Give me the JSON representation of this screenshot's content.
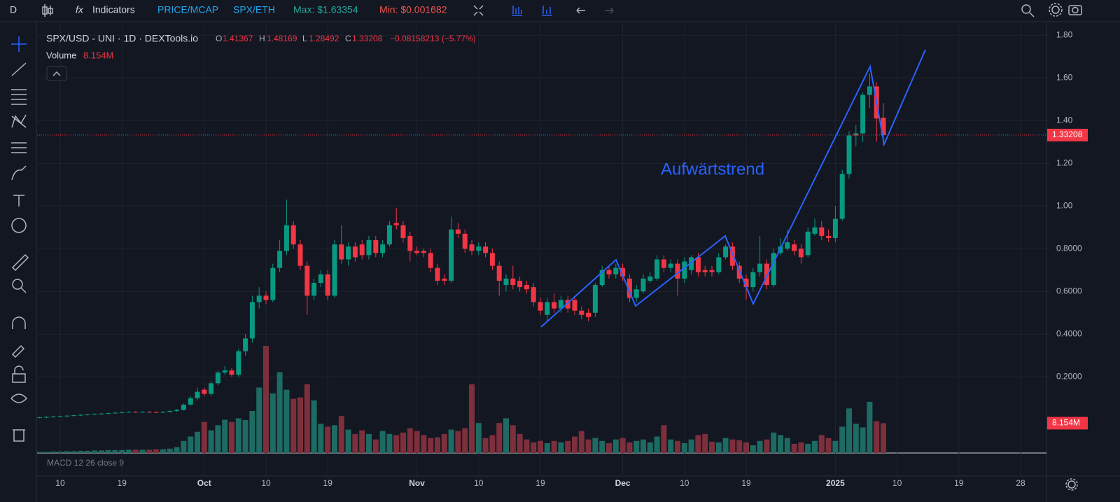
{
  "toolbar": {
    "interval": "D",
    "indicators": "Indicators",
    "price_mcap": "PRICE/MCAP",
    "pair": "SPX/ETH",
    "max": "Max: $1.63354",
    "min": "Min: $0.001682"
  },
  "chart_data": {
    "type": "candlestick",
    "title": "SPX/USD - UNI · 1D · DEXTools.io",
    "ohlc_labels": [
      "O",
      "H",
      "L",
      "C"
    ],
    "change": "−0.08158213 (−5.77%)",
    "volume_title": "Volume",
    "volume_last": "8.154M",
    "indicator": "MACD 12 26 close 9",
    "annotation": "Aufwärtstrend",
    "up_color": "#089981",
    "down_color": "#f23645",
    "volume_up_color": "#1d6b62",
    "volume_down_color": "#7d2f3c",
    "annotation_color": "#2962ff",
    "grid": true,
    "ylim": [
      -0.15,
      1.84
    ],
    "yticks": [
      {
        "value": 0.2,
        "label": "0.2000"
      },
      {
        "value": 0.4,
        "label": "0.4000"
      },
      {
        "value": 0.6,
        "label": "0.6000"
      },
      {
        "value": 0.8,
        "label": "0.8000"
      },
      {
        "value": 1.0,
        "label": "1.00"
      },
      {
        "value": 1.2,
        "label": "1.20"
      },
      {
        "value": 1.4,
        "label": "1.40"
      },
      {
        "value": 1.6,
        "label": "1.60"
      },
      {
        "value": 1.8,
        "label": "1.80"
      }
    ],
    "categories": [
      null,
      null,
      null,
      "10",
      null,
      null,
      null,
      null,
      null,
      null,
      null,
      null,
      "19",
      null,
      null,
      null,
      null,
      null,
      null,
      null,
      null,
      null,
      null,
      null,
      "Oct",
      null,
      null,
      null,
      null,
      null,
      null,
      null,
      null,
      "10",
      null,
      null,
      null,
      null,
      null,
      null,
      null,
      null,
      "19",
      null,
      null,
      null,
      null,
      null,
      null,
      null,
      null,
      null,
      null,
      null,
      null,
      "Nov",
      null,
      null,
      null,
      null,
      null,
      null,
      null,
      null,
      "10",
      null,
      null,
      null,
      null,
      null,
      null,
      null,
      null,
      "19",
      null,
      null,
      null,
      null,
      null,
      null,
      null,
      null,
      null,
      null,
      null,
      "Dec",
      null,
      null,
      null,
      null,
      null,
      null,
      null,
      null,
      "10",
      null,
      null,
      null,
      null,
      null,
      null,
      null,
      null,
      "19",
      null,
      null,
      null,
      null,
      null,
      null,
      null,
      null,
      null,
      null,
      null,
      null,
      "2025",
      null,
      null,
      null,
      null,
      null,
      null,
      null,
      null,
      "10",
      null,
      null,
      null,
      null,
      null,
      null,
      null,
      null,
      "19",
      null,
      null,
      null,
      null,
      null,
      null,
      null,
      null,
      "28",
      null,
      null,
      null
    ],
    "open": [
      0.009,
      0.01,
      0.012,
      0.014,
      0.016,
      0.018,
      0.02,
      0.022,
      0.024,
      0.026,
      0.028,
      0.03,
      0.032,
      0.034,
      0.036,
      0.035,
      0.036,
      0.035,
      0.034,
      0.036,
      0.04,
      0.045,
      0.07,
      0.1,
      0.14,
      0.12,
      0.17,
      0.22,
      0.23,
      0.21,
      0.32,
      0.38,
      0.55,
      0.58,
      0.56,
      0.71,
      0.79,
      0.91,
      0.82,
      0.72,
      0.58,
      0.64,
      0.68,
      0.58,
      0.82,
      0.75,
      0.81,
      0.82,
      0.77,
      0.84,
      0.78,
      0.82,
      0.92,
      0.91,
      0.86,
      0.79,
      0.79,
      0.78,
      0.71,
      0.66,
      0.65,
      0.89,
      0.87,
      0.82,
      0.79,
      0.81,
      0.78,
      0.72,
      0.63,
      0.66,
      0.65,
      0.63,
      0.62,
      0.55,
      0.49,
      0.55,
      0.52,
      0.56,
      0.56,
      0.51,
      0.5,
      0.5,
      0.63,
      0.7,
      0.68,
      0.71,
      0.66,
      0.57,
      0.6,
      0.65,
      0.66,
      0.75,
      0.71,
      0.73,
      0.66,
      0.7,
      0.76,
      0.7,
      0.7,
      0.69,
      0.76,
      0.81,
      0.72,
      0.66,
      0.62,
      0.69,
      0.73,
      0.63,
      0.78,
      0.8,
      0.82,
      0.8,
      0.77,
      0.87,
      0.9,
      0.86,
      0.85,
      0.94,
      1.15,
      1.33,
      1.34,
      1.52,
      1.56,
      1.41367,
      null,
      null,
      null,
      null,
      null,
      null,
      null,
      null,
      null,
      null,
      null,
      null,
      null,
      null,
      null,
      null,
      null,
      null,
      null,
      null,
      null,
      null,
      null
    ],
    "high": [
      0.013,
      0.015,
      0.017,
      0.019,
      0.021,
      0.023,
      0.025,
      0.027,
      0.029,
      0.031,
      0.033,
      0.035,
      0.037,
      0.039,
      0.039,
      0.039,
      0.039,
      0.038,
      0.039,
      0.044,
      0.05,
      0.075,
      0.11,
      0.15,
      0.15,
      0.18,
      0.23,
      0.25,
      0.24,
      0.33,
      0.4,
      0.58,
      0.62,
      0.6,
      0.73,
      0.84,
      1.03,
      0.93,
      0.84,
      0.74,
      0.66,
      0.7,
      0.7,
      0.84,
      0.91,
      0.83,
      0.83,
      0.84,
      0.86,
      0.86,
      0.84,
      0.93,
      0.99,
      0.93,
      0.88,
      0.81,
      0.8,
      0.8,
      0.73,
      0.68,
      0.95,
      0.92,
      0.89,
      0.84,
      0.83,
      0.83,
      0.8,
      0.74,
      0.68,
      0.72,
      0.67,
      0.65,
      0.64,
      0.57,
      0.57,
      0.59,
      0.58,
      0.58,
      0.58,
      0.53,
      0.52,
      0.64,
      0.72,
      0.72,
      0.73,
      0.73,
      0.68,
      0.63,
      0.68,
      0.69,
      0.77,
      0.77,
      0.75,
      0.75,
      0.76,
      0.77,
      0.78,
      0.72,
      0.72,
      0.78,
      0.82,
      0.83,
      0.74,
      0.68,
      0.71,
      0.86,
      0.75,
      0.8,
      0.85,
      0.89,
      0.84,
      0.82,
      0.9,
      0.94,
      0.93,
      0.89,
      1.0,
      1.17,
      1.35,
      1.38,
      1.53,
      1.62,
      1.58,
      1.48169,
      null,
      null,
      null,
      null,
      null,
      null,
      null,
      null,
      null,
      null,
      null,
      null,
      null,
      null,
      null,
      null,
      null,
      null,
      null,
      null,
      null,
      null,
      null
    ],
    "low": [
      0.006,
      0.007,
      0.009,
      0.011,
      0.013,
      0.015,
      0.017,
      0.019,
      0.021,
      0.023,
      0.025,
      0.027,
      0.029,
      0.031,
      0.032,
      0.032,
      0.032,
      0.031,
      0.031,
      0.033,
      0.037,
      0.042,
      0.065,
      0.09,
      0.11,
      0.11,
      0.16,
      0.21,
      0.2,
      0.2,
      0.3,
      0.36,
      0.52,
      0.54,
      0.55,
      0.69,
      0.77,
      0.8,
      0.7,
      0.49,
      0.56,
      0.62,
      0.56,
      0.57,
      0.73,
      0.72,
      0.74,
      0.75,
      0.75,
      0.76,
      0.76,
      0.81,
      0.89,
      0.83,
      0.74,
      0.77,
      0.76,
      0.69,
      0.63,
      0.63,
      0.64,
      0.85,
      0.78,
      0.77,
      0.77,
      0.76,
      0.7,
      0.58,
      0.6,
      0.61,
      0.6,
      0.59,
      0.53,
      0.49,
      0.46,
      0.5,
      0.5,
      0.5,
      0.49,
      0.47,
      0.46,
      0.48,
      0.62,
      0.66,
      0.66,
      0.65,
      0.55,
      0.55,
      0.59,
      0.64,
      0.65,
      0.69,
      0.69,
      0.58,
      0.64,
      0.68,
      0.67,
      0.67,
      0.67,
      0.68,
      0.75,
      0.7,
      0.64,
      0.56,
      0.6,
      0.67,
      0.61,
      0.62,
      0.77,
      0.79,
      0.77,
      0.73,
      0.76,
      0.86,
      0.84,
      0.83,
      0.83,
      0.93,
      1.13,
      1.28,
      1.3,
      1.46,
      1.3,
      1.28492,
      null,
      null,
      null,
      null,
      null,
      null,
      null,
      null,
      null,
      null,
      null,
      null,
      null,
      null,
      null,
      null,
      null,
      null,
      null,
      null,
      null,
      null,
      null
    ],
    "close": [
      0.01,
      0.012,
      0.014,
      0.016,
      0.018,
      0.02,
      0.022,
      0.024,
      0.026,
      0.028,
      0.03,
      0.032,
      0.034,
      0.036,
      0.035,
      0.036,
      0.035,
      0.034,
      0.036,
      0.04,
      0.045,
      0.07,
      0.1,
      0.13,
      0.12,
      0.17,
      0.22,
      0.23,
      0.21,
      0.32,
      0.38,
      0.55,
      0.58,
      0.56,
      0.71,
      0.79,
      0.91,
      0.82,
      0.72,
      0.58,
      0.64,
      0.68,
      0.58,
      0.82,
      0.75,
      0.81,
      0.76,
      0.77,
      0.84,
      0.78,
      0.82,
      0.91,
      0.91,
      0.85,
      0.79,
      0.78,
      0.78,
      0.71,
      0.65,
      0.65,
      0.89,
      0.87,
      0.8,
      0.79,
      0.81,
      0.78,
      0.72,
      0.65,
      0.66,
      0.63,
      0.62,
      0.61,
      0.55,
      0.51,
      0.55,
      0.52,
      0.56,
      0.52,
      0.51,
      0.49,
      0.48,
      0.63,
      0.7,
      0.68,
      0.71,
      0.67,
      0.57,
      0.61,
      0.66,
      0.67,
      0.75,
      0.71,
      0.73,
      0.66,
      0.74,
      0.76,
      0.69,
      0.69,
      0.69,
      0.76,
      0.81,
      0.72,
      0.66,
      0.62,
      0.69,
      0.73,
      0.63,
      0.78,
      0.81,
      0.83,
      0.79,
      0.76,
      0.88,
      0.9,
      0.86,
      0.85,
      0.94,
      1.15,
      1.33,
      1.34,
      1.52,
      1.56,
      1.41,
      1.33208,
      null,
      null,
      null,
      null,
      null,
      null,
      null,
      null,
      null,
      null,
      null,
      null,
      null,
      null,
      null,
      null,
      null,
      null,
      null,
      null,
      null,
      null,
      null
    ],
    "volume": [
      0.3,
      0.3,
      0.4,
      0.4,
      0.5,
      0.5,
      0.6,
      0.6,
      0.7,
      0.7,
      0.8,
      0.8,
      0.8,
      0.9,
      0.9,
      0.9,
      0.9,
      1.0,
      1.0,
      1.2,
      1.6,
      3.3,
      4.5,
      5.8,
      8.5,
      6.2,
      7.6,
      9.1,
      8.5,
      9.5,
      9.0,
      11.5,
      17.9,
      29.3,
      16.3,
      22.1,
      17.3,
      14.8,
      15.2,
      18.8,
      14.4,
      8.0,
      7.2,
      7.6,
      10.1,
      6.4,
      5.2,
      6.2,
      5.2,
      3.7,
      6.0,
      5.2,
      4.9,
      5.6,
      6.8,
      6.0,
      4.9,
      4.1,
      4.3,
      5.2,
      6.4,
      6.0,
      6.8,
      18.8,
      8.2,
      4.1,
      4.9,
      8.2,
      9.5,
      7.6,
      5.2,
      3.7,
      2.9,
      3.3,
      2.7,
      3.3,
      2.9,
      3.3,
      4.5,
      6.0,
      3.7,
      4.1,
      3.3,
      2.7,
      3.7,
      4.1,
      2.9,
      3.3,
      3.7,
      2.9,
      4.5,
      7.6,
      3.7,
      3.3,
      2.7,
      3.7,
      4.9,
      5.2,
      3.1,
      2.9,
      4.1,
      3.7,
      3.5,
      2.9,
      2.1,
      3.3,
      3.7,
      5.6,
      4.9,
      4.1,
      2.5,
      2.9,
      2.5,
      3.3,
      4.9,
      4.1,
      3.3,
      7.2,
      12.2,
      8.0,
      7.0,
      14.0,
      8.7,
      8.154,
      null,
      null,
      null,
      null,
      null,
      null,
      null,
      null,
      null,
      null,
      null,
      null,
      null,
      null,
      null,
      null,
      null,
      null,
      null,
      null,
      null,
      null,
      null
    ]
  }
}
